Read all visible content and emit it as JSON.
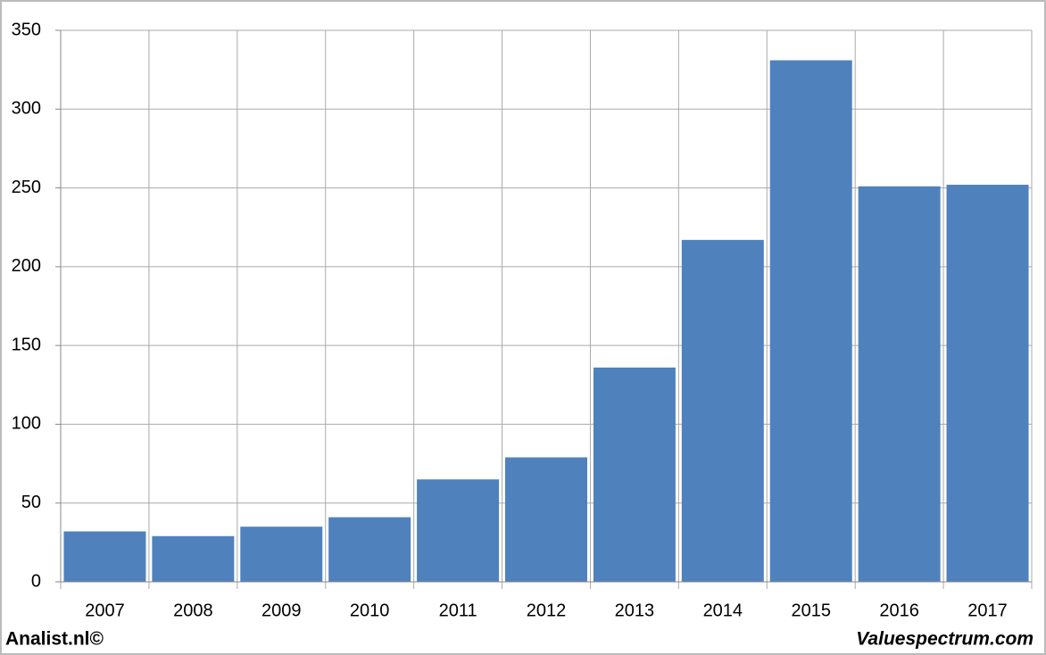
{
  "chart_data": {
    "type": "bar",
    "categories": [
      "2007",
      "2008",
      "2009",
      "2010",
      "2011",
      "2012",
      "2013",
      "2014",
      "2015",
      "2016",
      "2017"
    ],
    "values": [
      32,
      29,
      35,
      41,
      65,
      79,
      136,
      217,
      331,
      251,
      252
    ],
    "color": "#4f81bd",
    "ylim": [
      0,
      350
    ],
    "yticks": [
      0,
      50,
      100,
      150,
      200,
      250,
      300,
      350
    ],
    "grid": true
  },
  "footer": {
    "left": "Analist.nl©",
    "right": "Valuespectrum.com"
  }
}
